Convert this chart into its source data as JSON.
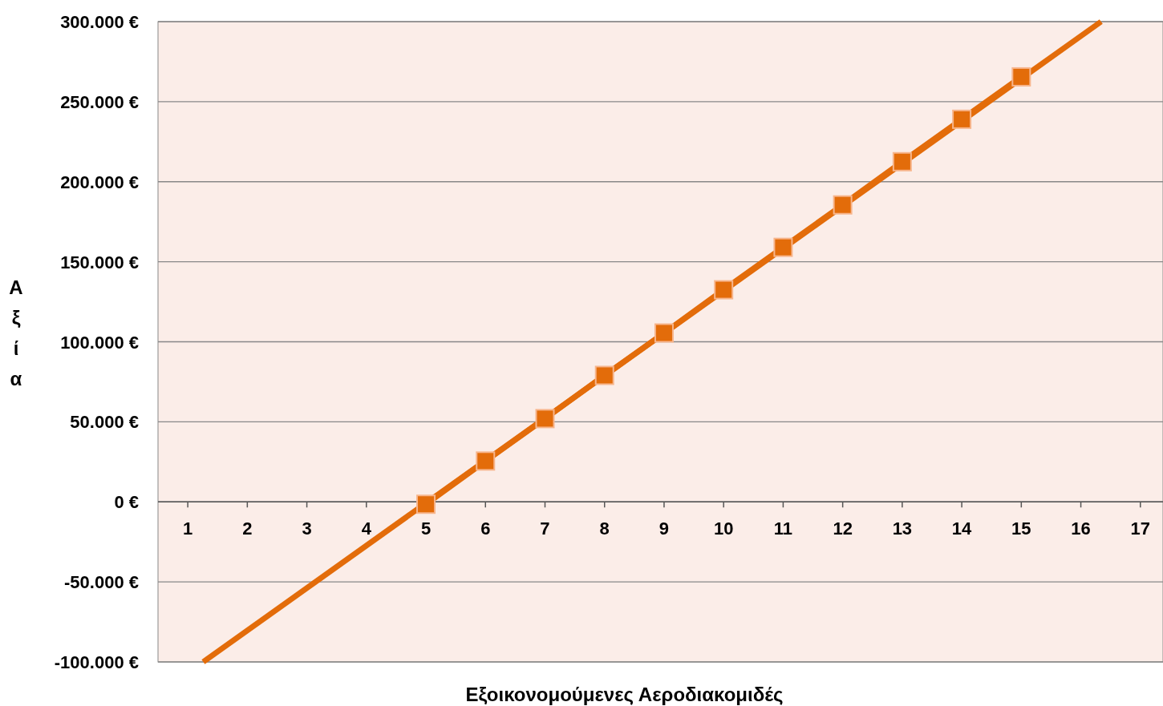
{
  "chart_data": {
    "type": "line",
    "xlabel": "Εξοικονομούμενες Αεροδιακομιδές",
    "ylabel": "Αξία",
    "xlim": [
      0.5,
      17.38
    ],
    "xticks": [
      1,
      2,
      3,
      4,
      5,
      6,
      7,
      8,
      9,
      10,
      11,
      12,
      13,
      14,
      15,
      16,
      17
    ],
    "ylim": [
      -100000,
      300000
    ],
    "yticks": [
      {
        "value": -100000,
        "label": "-100.000 €"
      },
      {
        "value": -50000,
        "label": "-50.000 €"
      },
      {
        "value": 0,
        "label": "0 €"
      },
      {
        "value": 50000,
        "label": "50.000 €"
      },
      {
        "value": 100000,
        "label": "100.000 €"
      },
      {
        "value": 150000,
        "label": "150.000 €"
      },
      {
        "value": 200000,
        "label": "200.000 €"
      },
      {
        "value": 250000,
        "label": "250.000 €"
      },
      {
        "value": 300000,
        "label": "300.000 €"
      }
    ],
    "grid": "y",
    "series": [
      {
        "color": "#e36c0a",
        "marker": "none",
        "x": [
          1.26,
          16.34
        ],
        "values": [
          -100000,
          300000
        ]
      },
      {
        "color": "#e36c0a",
        "marker": "square",
        "x": [
          5,
          6,
          7,
          8,
          9,
          10,
          11,
          12,
          13,
          14,
          15
        ],
        "values": [
          -1500,
          25500,
          52000,
          79000,
          105500,
          132500,
          159000,
          185500,
          212500,
          239000,
          265500
        ]
      }
    ]
  }
}
